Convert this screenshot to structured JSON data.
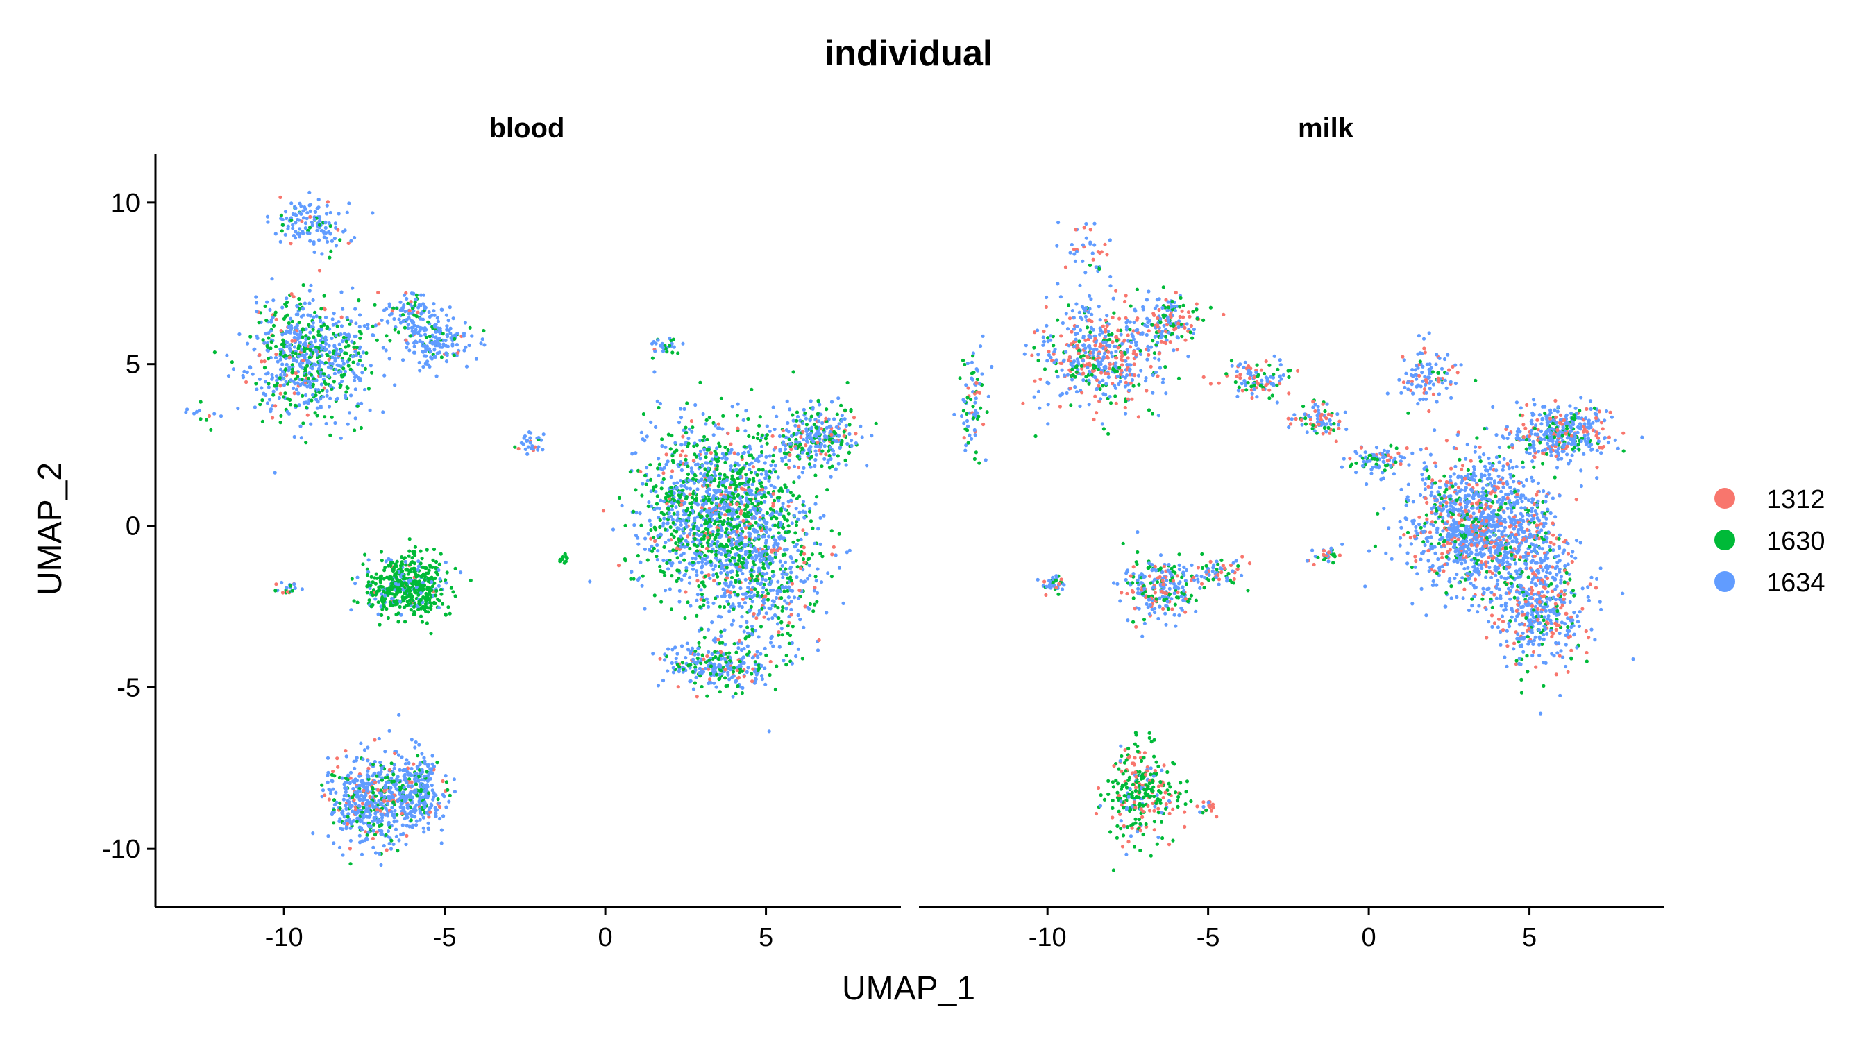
{
  "chart_data": {
    "type": "scatter",
    "title": "individual",
    "xlabel": "UMAP_1",
    "ylabel": "UMAP_2",
    "xlim": [
      -14,
      9.2
    ],
    "ylim": [
      -11.8,
      11.5
    ],
    "xticks": [
      -10,
      -5,
      0,
      5
    ],
    "yticks": [
      10,
      5,
      0,
      -5,
      -10
    ],
    "grid": false,
    "legend_position": "right",
    "series": [
      {
        "name": "1312",
        "color": "#F8766D"
      },
      {
        "name": "1630",
        "color": "#00BA38"
      },
      {
        "name": "1634",
        "color": "#619CFF"
      }
    ],
    "facets": [
      {
        "label": "blood",
        "clusters": [
          {
            "cx": -9.2,
            "cy": 9.3,
            "rx": 1.2,
            "ry": 0.8,
            "n": 130,
            "w": [
              0.05,
              0.1,
              0.85
            ]
          },
          {
            "cx": -9.2,
            "cy": 5.2,
            "rx": 1.8,
            "ry": 1.9,
            "n": 700,
            "w": [
              0.07,
              0.3,
              0.63
            ]
          },
          {
            "cx": -6.0,
            "cy": 6.5,
            "rx": 1.0,
            "ry": 0.7,
            "n": 120,
            "w": [
              0.05,
              0.2,
              0.75
            ]
          },
          {
            "cx": -5.2,
            "cy": 5.6,
            "rx": 1.1,
            "ry": 0.7,
            "n": 150,
            "w": [
              0.05,
              0.15,
              0.8
            ]
          },
          {
            "cx": 1.9,
            "cy": 5.5,
            "rx": 0.5,
            "ry": 0.3,
            "n": 30,
            "w": [
              0.05,
              0.2,
              0.75
            ]
          },
          {
            "cx": -2.3,
            "cy": 2.6,
            "rx": 0.5,
            "ry": 0.4,
            "n": 30,
            "w": [
              0.05,
              0.1,
              0.85
            ]
          },
          {
            "cx": 3.2,
            "cy": 0.5,
            "rx": 2.2,
            "ry": 2.7,
            "n": 1200,
            "w": [
              0.08,
              0.42,
              0.5
            ]
          },
          {
            "cx": 5.0,
            "cy": -1.0,
            "rx": 1.8,
            "ry": 3.0,
            "n": 700,
            "w": [
              0.08,
              0.35,
              0.57
            ]
          },
          {
            "cx": 6.5,
            "cy": 2.8,
            "rx": 1.4,
            "ry": 0.9,
            "n": 300,
            "w": [
              0.1,
              0.35,
              0.55
            ]
          },
          {
            "cx": 3.5,
            "cy": -4.3,
            "rx": 1.5,
            "ry": 0.7,
            "n": 260,
            "w": [
              0.12,
              0.3,
              0.58
            ]
          },
          {
            "cx": -6.2,
            "cy": -1.9,
            "rx": 1.3,
            "ry": 1.0,
            "n": 480,
            "w": [
              0.03,
              0.8,
              0.17
            ]
          },
          {
            "cx": -7.4,
            "cy": -8.5,
            "rx": 1.3,
            "ry": 1.5,
            "n": 480,
            "w": [
              0.1,
              0.15,
              0.75
            ]
          },
          {
            "cx": -5.9,
            "cy": -8.3,
            "rx": 0.9,
            "ry": 1.1,
            "n": 300,
            "w": [
              0.08,
              0.15,
              0.77
            ]
          },
          {
            "cx": -9.9,
            "cy": -1.9,
            "rx": 0.4,
            "ry": 0.2,
            "n": 20,
            "w": [
              0.3,
              0.2,
              0.5
            ]
          },
          {
            "cx": -1.3,
            "cy": -1.0,
            "rx": 0.15,
            "ry": 0.15,
            "n": 10,
            "w": [
              0.0,
              1.0,
              0.0
            ]
          },
          {
            "cx": -12.5,
            "cy": 3.4,
            "rx": 0.5,
            "ry": 0.5,
            "n": 12,
            "w": [
              0.2,
              0.4,
              0.4
            ]
          }
        ]
      },
      {
        "label": "milk",
        "clusters": [
          {
            "cx": -8.4,
            "cy": 5.2,
            "rx": 1.9,
            "ry": 1.6,
            "n": 520,
            "w": [
              0.3,
              0.15,
              0.55
            ]
          },
          {
            "cx": -6.2,
            "cy": 6.3,
            "rx": 1.0,
            "ry": 0.8,
            "n": 150,
            "w": [
              0.3,
              0.25,
              0.45
            ]
          },
          {
            "cx": -8.8,
            "cy": 8.5,
            "rx": 0.8,
            "ry": 1.0,
            "n": 40,
            "w": [
              0.3,
              0.1,
              0.6
            ]
          },
          {
            "cx": -12.3,
            "cy": 3.8,
            "rx": 0.4,
            "ry": 1.5,
            "n": 80,
            "w": [
              0.1,
              0.3,
              0.6
            ]
          },
          {
            "cx": -3.5,
            "cy": 4.5,
            "rx": 1.0,
            "ry": 0.6,
            "n": 100,
            "w": [
              0.35,
              0.2,
              0.45
            ]
          },
          {
            "cx": -1.6,
            "cy": 3.3,
            "rx": 0.9,
            "ry": 0.5,
            "n": 80,
            "w": [
              0.3,
              0.2,
              0.5
            ]
          },
          {
            "cx": 0.2,
            "cy": 2.0,
            "rx": 0.9,
            "ry": 0.5,
            "n": 90,
            "w": [
              0.25,
              0.2,
              0.55
            ]
          },
          {
            "cx": 1.8,
            "cy": 4.6,
            "rx": 0.9,
            "ry": 0.9,
            "n": 110,
            "w": [
              0.25,
              0.15,
              0.6
            ]
          },
          {
            "cx": 3.5,
            "cy": 0.0,
            "rx": 2.2,
            "ry": 2.0,
            "n": 1300,
            "w": [
              0.2,
              0.12,
              0.68
            ]
          },
          {
            "cx": 5.3,
            "cy": -2.5,
            "rx": 1.5,
            "ry": 2.0,
            "n": 500,
            "w": [
              0.22,
              0.12,
              0.66
            ]
          },
          {
            "cx": 6.0,
            "cy": 2.9,
            "rx": 1.6,
            "ry": 0.8,
            "n": 380,
            "w": [
              0.18,
              0.15,
              0.67
            ]
          },
          {
            "cx": -6.5,
            "cy": -1.9,
            "rx": 1.1,
            "ry": 1.0,
            "n": 250,
            "w": [
              0.2,
              0.3,
              0.5
            ]
          },
          {
            "cx": -4.7,
            "cy": -1.5,
            "rx": 0.9,
            "ry": 0.5,
            "n": 60,
            "w": [
              0.25,
              0.2,
              0.55
            ]
          },
          {
            "cx": -9.9,
            "cy": -1.8,
            "rx": 0.4,
            "ry": 0.3,
            "n": 40,
            "w": [
              0.1,
              0.2,
              0.7
            ]
          },
          {
            "cx": -7.0,
            "cy": -8.3,
            "rx": 1.1,
            "ry": 1.4,
            "n": 300,
            "w": [
              0.2,
              0.6,
              0.2
            ]
          },
          {
            "cx": -5.0,
            "cy": -8.7,
            "rx": 0.3,
            "ry": 0.3,
            "n": 20,
            "w": [
              0.5,
              0.1,
              0.4
            ]
          },
          {
            "cx": -1.3,
            "cy": -0.9,
            "rx": 0.5,
            "ry": 0.25,
            "n": 30,
            "w": [
              0.3,
              0.2,
              0.5
            ]
          }
        ]
      }
    ]
  }
}
